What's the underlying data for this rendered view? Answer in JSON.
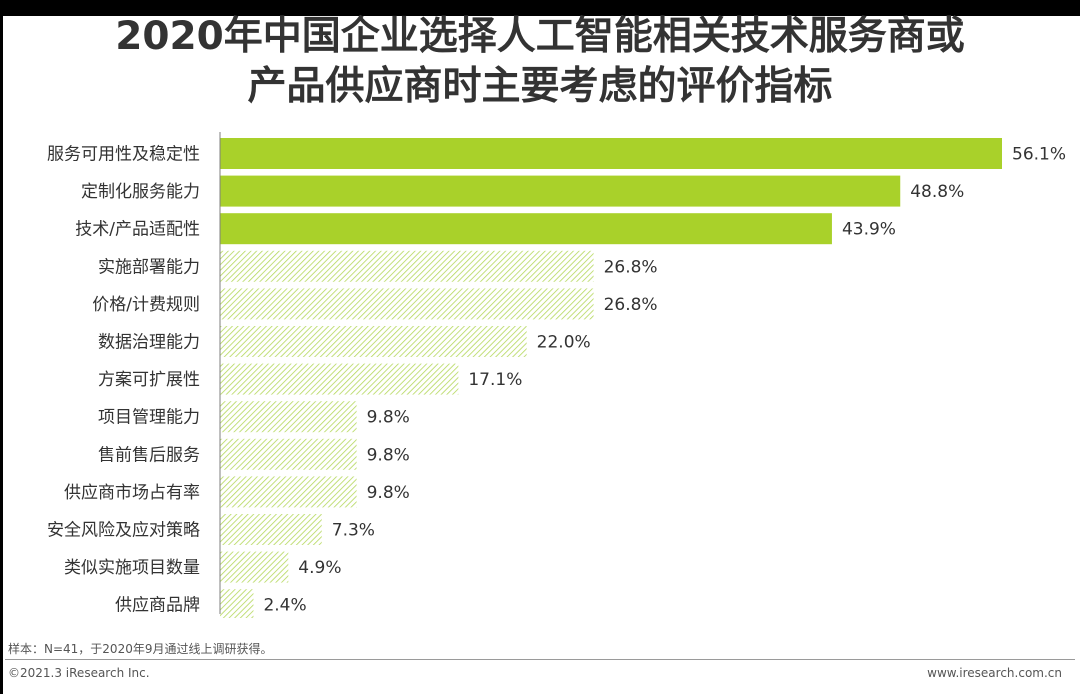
{
  "header": {
    "title_line1": "2020年中国企业选择人工智能相关技术服务商或",
    "title_line2": "产品供应商时主要考虑的评价指标"
  },
  "chart_data": {
    "type": "bar",
    "orientation": "horizontal",
    "categories": [
      "服务可用性及稳定性",
      "定制化服务能力",
      "技术/产品适配性",
      "实施部署能力",
      "价格/计费规则",
      "数据治理能力",
      "方案可扩展性",
      "项目管理能力",
      "售前售后服务",
      "供应商市场占有率",
      "安全风险及应对策略",
      "类似实施项目数量",
      "供应商品牌"
    ],
    "values": [
      56.1,
      48.8,
      43.9,
      26.8,
      26.8,
      22.0,
      17.1,
      9.8,
      9.8,
      9.8,
      7.3,
      4.9,
      2.4
    ],
    "value_labels": [
      "56.1%",
      "48.8%",
      "43.9%",
      "26.8%",
      "26.8%",
      "22.0%",
      "17.1%",
      "9.8%",
      "9.8%",
      "9.8%",
      "7.3%",
      "4.9%",
      "2.4%"
    ],
    "highlighted_count": 3,
    "highlight_color": "#a9d12a",
    "hatch_color": "#b4d85a",
    "axis_color": "#7f7f7f",
    "xlim": [
      0,
      60
    ],
    "grid": false,
    "legend": "none"
  },
  "footer": {
    "note": "样本：N=41，于2020年9月通过线上调研获得。",
    "copyright": "©2021.3 iResearch Inc.",
    "website": "www.iresearch.com.cn"
  }
}
